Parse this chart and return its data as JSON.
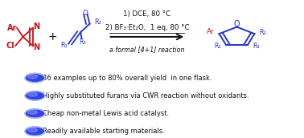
{
  "background_color": "#ffffff",
  "bullet_color_fill": "#3344dd",
  "bullet_color_edge": "#5566ff",
  "bullet_points": [
    "36 examples up to 80% overall yield  in one flask.",
    "Highly substituted furans via CWR reaction without oxidants.",
    "Cheap non-metal Lewis acid catalyst.",
    "Readily available starting materials."
  ],
  "text_fontsize": 6.0,
  "arrow_color": "#000000",
  "red_color": "#cc1111",
  "blue_color": "#2233cc",
  "black_color": "#111111",
  "condition_line1": "1) DCE, 80 °C",
  "condition_line2": "2) BF₃·Et₂O,  1 eq, 80 °C",
  "condition_line3": "a formal [4+1] reaction",
  "fig_width": 3.78,
  "fig_height": 1.72,
  "dpi": 100
}
